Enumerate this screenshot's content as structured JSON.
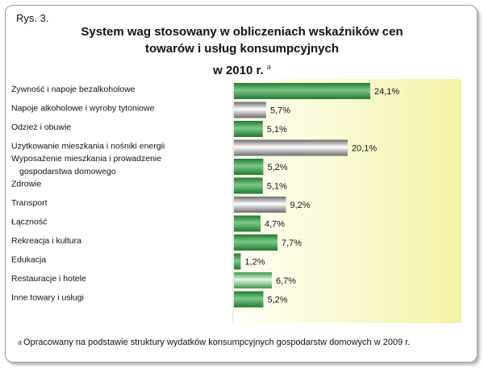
{
  "figure_label": "Rys. 3.",
  "title_lines": [
    "System wag stosowany w obliczeniach wskaźników cen",
    "towarów i usług konsumpcyjnych",
    "w 2010 r."
  ],
  "title_footnote_mark": "a",
  "footnote": {
    "mark": "a",
    "text": "Opracowany na podstawie struktury wydatków konsumpcyjnych gospodarstw domowych w 2009 r."
  },
  "colors": {
    "plot_bg_light": "#fffff6",
    "plot_bg_dark": "#f4f2a6",
    "bar_dark": "#1f7a2e",
    "bar_light": "#e6f5e6",
    "bar_grey_dark": "#6b6b6b"
  },
  "chart_data": {
    "type": "bar",
    "orientation": "horizontal",
    "categories": [
      "Żywność i napoje bezalkoholowe",
      "Napoje alkoholowe i wyroby tytoniowe",
      "Odzież i obuwie",
      "Użytkowanie mieszkania i nośniki energii",
      "Wyposażenie mieszkania i prowadzenie gospodarstwa domowego",
      "Zdrowie",
      "Transport",
      "Łączność",
      "Rekreacja i kultura",
      "Edukacja",
      "Restauracje i hotele",
      "Inne towary i usługi"
    ],
    "category_label_lines": [
      [
        "Żywność i napoje bezalkoholowe"
      ],
      [
        "Napoje alkoholowe i wyroby tytoniowe"
      ],
      [
        "Odzież i obuwie"
      ],
      [
        "Użytkowanie mieszkania i nośniki energii"
      ],
      [
        "Wyposażenie mieszkania i prowadzenie",
        "gospodarstwa domowego"
      ],
      [
        "Zdrowie"
      ],
      [
        "Transport"
      ],
      [
        "Łączność"
      ],
      [
        "Rekreacja i kultura"
      ],
      [
        "Edukacja"
      ],
      [
        "Restauracje i hotele"
      ],
      [
        "Inne towary i usługi"
      ]
    ],
    "values": [
      24.1,
      5.7,
      5.1,
      20.1,
      5.2,
      5.1,
      9.2,
      4.7,
      7.7,
      1.2,
      6.7,
      5.2
    ],
    "value_labels": [
      "24,1%",
      "5,7%",
      "5,1%",
      "20,1%",
      "5,2%",
      "5,1%",
      "9,2%",
      "4,7%",
      "7,7%",
      "1,2%",
      "6,7%",
      "5,2%"
    ],
    "bar_styles": [
      "green",
      "grey",
      "green",
      "grey",
      "green",
      "green",
      "grey",
      "green",
      "green",
      "green",
      "light",
      "green"
    ],
    "unit": "%",
    "xlim": [
      0,
      30
    ],
    "grid": false,
    "legend": "none"
  }
}
